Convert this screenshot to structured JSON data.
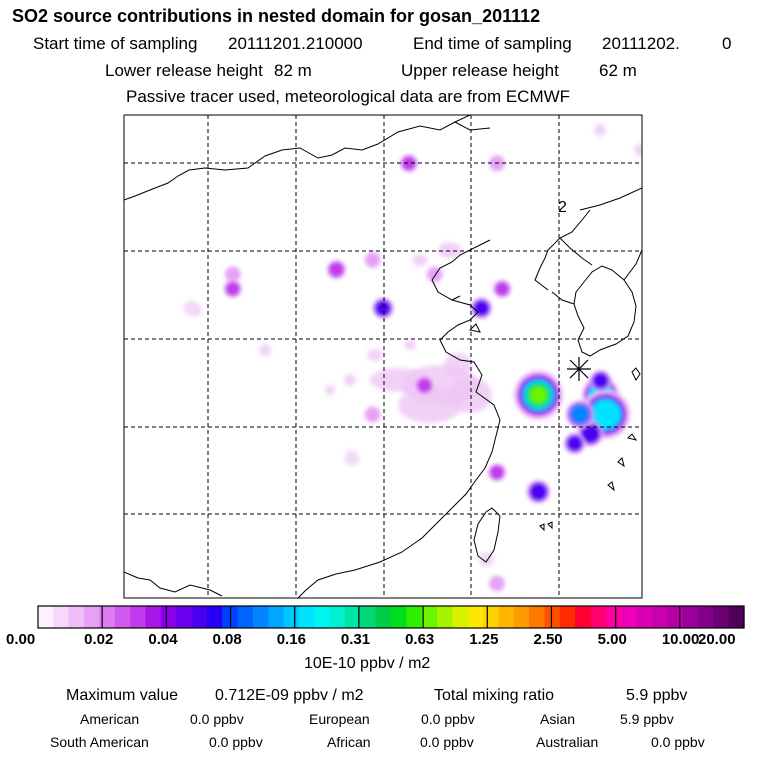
{
  "header": {
    "title": "SO2 source contributions in nested domain for gosan_201112",
    "start_label": "Start time of sampling",
    "start_value": "20111201.210000",
    "end_label": "End time of sampling",
    "end_value": "20111202.",
    "end_extra": "0",
    "lower_label": "Lower release height",
    "lower_value": "82 m",
    "upper_label": "Upper release height",
    "upper_value": "62 m",
    "note": "Passive tracer used, meteorological data are from ECMWF"
  },
  "chart_data": {
    "type": "heatmap",
    "map_annotation": "2",
    "station_marker": "receptor",
    "hotspots": [
      {
        "lon": 0.8,
        "lat": 0.58,
        "value": 0.712
      },
      {
        "lon": 0.92,
        "lat": 0.58,
        "value": 0.2
      },
      {
        "lon": 0.93,
        "lat": 0.62,
        "value": 0.3
      },
      {
        "lon": 0.9,
        "lat": 0.66,
        "value": 0.1
      },
      {
        "lon": 0.87,
        "lat": 0.68,
        "value": 0.06
      },
      {
        "lon": 0.92,
        "lat": 0.55,
        "value": 0.06
      },
      {
        "lon": 0.88,
        "lat": 0.62,
        "value": 0.12
      },
      {
        "lon": 0.8,
        "lat": 0.78,
        "value": 0.08
      },
      {
        "lon": 0.72,
        "lat": 0.74,
        "value": 0.03
      },
      {
        "lon": 0.48,
        "lat": 0.62,
        "value": 0.02
      },
      {
        "lon": 0.58,
        "lat": 0.56,
        "value": 0.03
      },
      {
        "lon": 0.5,
        "lat": 0.4,
        "value": 0.06
      },
      {
        "lon": 0.69,
        "lat": 0.4,
        "value": 0.06
      },
      {
        "lon": 0.73,
        "lat": 0.36,
        "value": 0.03
      },
      {
        "lon": 0.6,
        "lat": 0.33,
        "value": 0.02
      },
      {
        "lon": 0.48,
        "lat": 0.3,
        "value": 0.02
      },
      {
        "lon": 0.41,
        "lat": 0.32,
        "value": 0.04
      },
      {
        "lon": 0.21,
        "lat": 0.33,
        "value": 0.02
      },
      {
        "lon": 0.21,
        "lat": 0.36,
        "value": 0.03
      },
      {
        "lon": 0.13,
        "lat": 0.4,
        "value": 0.01
      },
      {
        "lon": 0.55,
        "lat": 0.1,
        "value": 0.03
      },
      {
        "lon": 0.72,
        "lat": 0.1,
        "value": 0.02
      },
      {
        "lon": 0.44,
        "lat": 0.71,
        "value": 0.01
      },
      {
        "lon": 0.72,
        "lat": 0.97,
        "value": 0.02
      },
      {
        "lon": 0.7,
        "lat": 0.92,
        "value": 0.01
      }
    ],
    "colorbar": {
      "ticks": [
        "0.00",
        "0.02",
        "0.04",
        "0.08",
        "0.16",
        "0.31",
        "0.63",
        "1.25",
        "2.50",
        "5.00",
        "10.00",
        "20.00"
      ],
      "colors": [
        "#fdf0ff",
        "#f6d8fb",
        "#efbdf8",
        "#e6a0f5",
        "#de7df1",
        "#d05aee",
        "#c13bec",
        "#a918e8",
        "#8a00e8",
        "#6c00ee",
        "#4c00f2",
        "#2600f6",
        "#0040ff",
        "#0062ff",
        "#0085ff",
        "#00a6ff",
        "#00c8ff",
        "#00e3ff",
        "#00f5f0",
        "#00f0d0",
        "#00e5a3",
        "#00d775",
        "#00cc45",
        "#00dd1a",
        "#30ee00",
        "#6cf500",
        "#a4f500",
        "#d8f200",
        "#ffe800",
        "#ffd200",
        "#ffb600",
        "#ff9a00",
        "#ff7600",
        "#ff5000",
        "#ff2a00",
        "#ff0032",
        "#ff0070",
        "#ff00a0",
        "#f000b8",
        "#dc00b4",
        "#c800ae",
        "#b400a6",
        "#9c009c",
        "#84008a",
        "#6a0072",
        "#500058"
      ],
      "unit": "10E-10 ppbv / m2"
    }
  },
  "stats": {
    "max_label": "Maximum value",
    "max_value": "0.712E-09 ppbv / m2",
    "total_label": "Total mixing ratio",
    "total_value": "5.9 ppbv",
    "regions": [
      {
        "name": "American",
        "value": "0.0 ppbv"
      },
      {
        "name": "European",
        "value": "0.0 ppbv"
      },
      {
        "name": "Asian",
        "value": "5.9 ppbv"
      },
      {
        "name": "South American",
        "value": "0.0 ppbv"
      },
      {
        "name": "African",
        "value": "0.0 ppbv"
      },
      {
        "name": "Australian",
        "value": "0.0 ppbv"
      }
    ]
  }
}
